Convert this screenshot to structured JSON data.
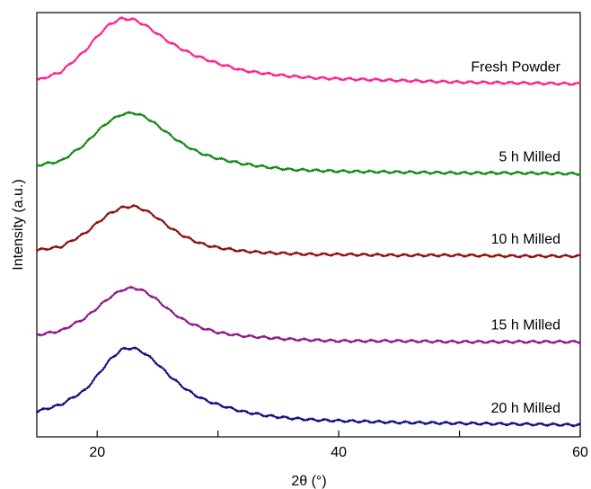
{
  "chart_data": {
    "type": "line",
    "title": "",
    "xlabel": "2θ (°)",
    "ylabel": "Intensity (a.u.)",
    "xlim": [
      15,
      60
    ],
    "xticks": [
      20,
      30,
      40,
      50,
      60
    ],
    "xtick_labels": [
      "20",
      "",
      "40",
      "",
      "60"
    ],
    "y_ticks_shown": false,
    "grid": false,
    "legend": "none",
    "series": [
      {
        "name": "Fresh Powder",
        "color": "#ff1f8e",
        "x": [
          15,
          17,
          19,
          20,
          21,
          22,
          23,
          24,
          25,
          26,
          27,
          28,
          29,
          30,
          32,
          34,
          36,
          38,
          40,
          45,
          50,
          55,
          60
        ],
        "y": [
          4.2,
          4.3,
          4.55,
          4.72,
          4.86,
          4.93,
          4.92,
          4.85,
          4.75,
          4.65,
          4.57,
          4.5,
          4.45,
          4.4,
          4.32,
          4.28,
          4.25,
          4.23,
          4.22,
          4.2,
          4.18,
          4.17,
          4.16
        ]
      },
      {
        "name": "5 h Milled",
        "color": "#138a13",
        "x": [
          15,
          17,
          19,
          20,
          21,
          22,
          23,
          24,
          25,
          26,
          27,
          28,
          29,
          30,
          32,
          34,
          36,
          38,
          40,
          45,
          50,
          55,
          60
        ],
        "y": [
          3.2,
          3.25,
          3.45,
          3.6,
          3.72,
          3.8,
          3.82,
          3.77,
          3.67,
          3.56,
          3.46,
          3.38,
          3.32,
          3.28,
          3.22,
          3.18,
          3.15,
          3.14,
          3.13,
          3.12,
          3.11,
          3.11,
          3.1
        ]
      },
      {
        "name": "10 h Milled",
        "color": "#8b1010",
        "x": [
          15,
          17,
          19,
          20,
          21,
          22,
          23,
          24,
          25,
          26,
          27,
          28,
          29,
          30,
          32,
          34,
          36,
          38,
          40,
          45,
          50,
          55,
          60
        ],
        "y": [
          2.2,
          2.24,
          2.4,
          2.52,
          2.63,
          2.7,
          2.72,
          2.67,
          2.58,
          2.47,
          2.38,
          2.31,
          2.26,
          2.23,
          2.19,
          2.17,
          2.16,
          2.15,
          2.15,
          2.14,
          2.14,
          2.13,
          2.13
        ]
      },
      {
        "name": "15 h Milled",
        "color": "#8a1a8a",
        "x": [
          15,
          17,
          19,
          20,
          21,
          22,
          23,
          24,
          25,
          26,
          27,
          28,
          29,
          30,
          32,
          34,
          36,
          38,
          40,
          45,
          50,
          55,
          60
        ],
        "y": [
          1.2,
          1.25,
          1.4,
          1.52,
          1.64,
          1.73,
          1.76,
          1.71,
          1.61,
          1.49,
          1.39,
          1.32,
          1.27,
          1.23,
          1.19,
          1.17,
          1.15,
          1.14,
          1.13,
          1.13,
          1.12,
          1.12,
          1.12
        ]
      },
      {
        "name": "20 h Milled",
        "color": "#10107e",
        "x": [
          15,
          17,
          19,
          20,
          21,
          22,
          23,
          24,
          25,
          26,
          27,
          28,
          29,
          30,
          32,
          34,
          36,
          38,
          40,
          45,
          50,
          55,
          60
        ],
        "y": [
          0.3,
          0.38,
          0.55,
          0.72,
          0.9,
          1.03,
          1.05,
          0.98,
          0.86,
          0.72,
          0.6,
          0.5,
          0.43,
          0.38,
          0.3,
          0.25,
          0.22,
          0.2,
          0.19,
          0.17,
          0.16,
          0.15,
          0.14
        ]
      }
    ]
  }
}
